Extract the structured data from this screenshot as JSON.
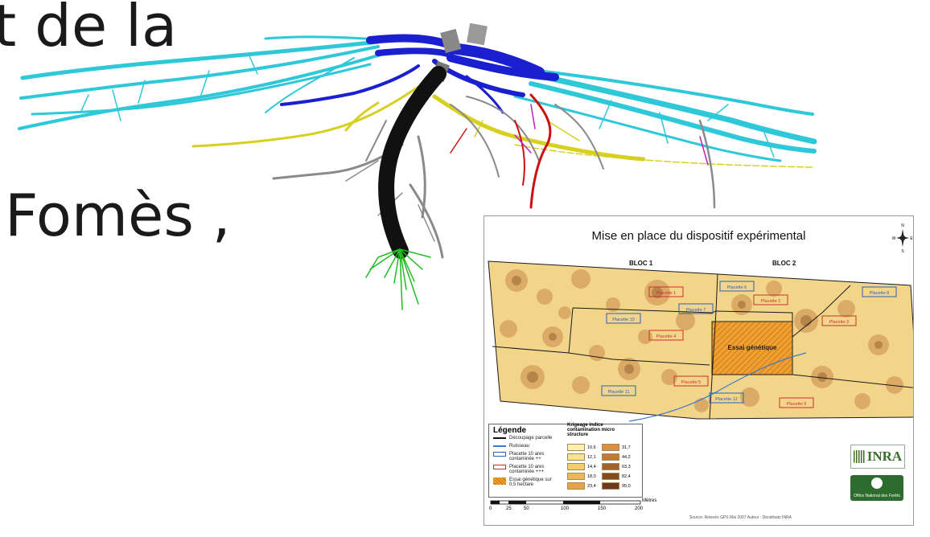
{
  "slide": {
    "line1": "t de la",
    "line2": "Fomès ,"
  },
  "map": {
    "title": "Mise en place du dispositif expérimental",
    "bloc1": "BLOC 1",
    "bloc2": "BLOC 2",
    "compass": {
      "n": "N",
      "s": "S",
      "e": "E",
      "w": "W"
    },
    "plots_blue": [
      "Placette 6",
      "Placette 7",
      "Placette 8",
      "Placette 10",
      "Placette 11",
      "Placette 12"
    ],
    "plots_red": [
      "Placette 1",
      "Placette 2",
      "Placette 3",
      "Placette 4",
      "Placette 5",
      "Placette 9"
    ],
    "essai": "Essai génétique",
    "legend": {
      "title": "Légende",
      "items": [
        "Découpage parcelle",
        "Ruisseau",
        "Placette 10 ares contaminée ++",
        "Placette 10 ares contaminée +++",
        "Essai génétique sur 0,5 hectare"
      ],
      "krig_title": "Krigeage indice contamination micro structure",
      "krig_left": [
        "10,6",
        "12,1",
        "14,4",
        "18,0",
        "23,4"
      ],
      "krig_right": [
        "31,7",
        "44,2",
        "63,3",
        "82,4",
        "95,0"
      ],
      "krig_colors_left": [
        "#fbf0b0",
        "#f8e390",
        "#f3cf6a",
        "#ecb855",
        "#e2a446"
      ],
      "krig_colors_right": [
        "#d99140",
        "#c07a35",
        "#a2622b",
        "#834b22",
        "#6a3a1a"
      ]
    },
    "scale": {
      "unit": "Mètres",
      "ticks": [
        "0",
        "25",
        "50",
        "100",
        "150",
        "200"
      ]
    },
    "source": "Source: Relevés GPS Mai 2007   Auteur : Dendrbats INRA",
    "logo_inra": "INRA",
    "logo_onf": "Office National des Forêts"
  },
  "colors": {
    "cyan": "#2ec8d8",
    "blue": "#1a20d0",
    "black": "#111111",
    "yellow": "#d8d020",
    "grey": "#8a8a8a",
    "red": "#cc1010",
    "green": "#22bb22",
    "magenta": "#c020c0"
  }
}
